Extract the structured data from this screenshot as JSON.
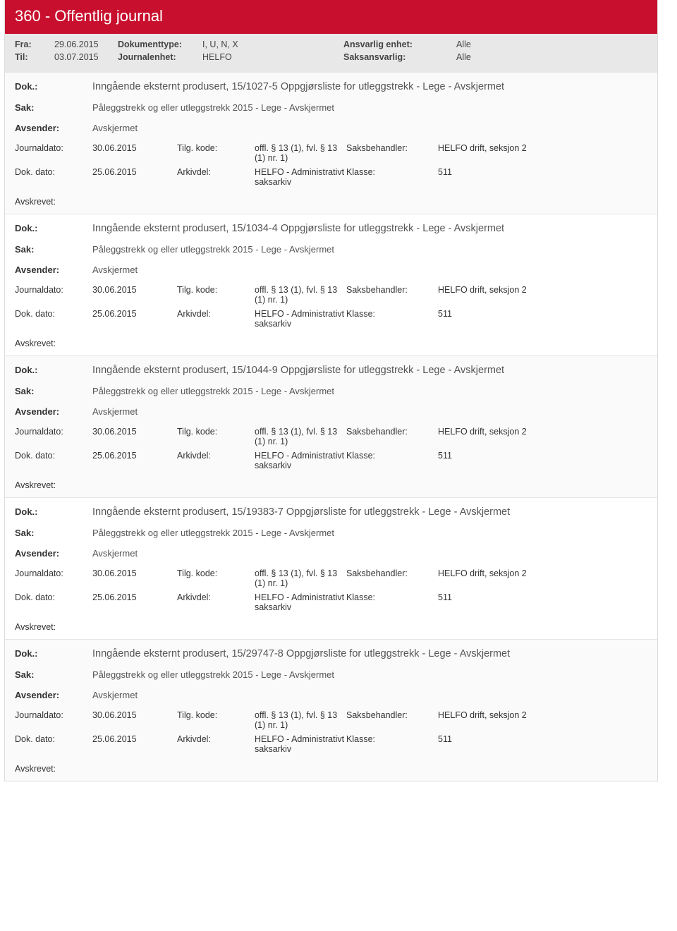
{
  "header": {
    "title": "360 - Offentlig journal",
    "rows": [
      {
        "l1": "Fra:",
        "v1": "29.06.2015",
        "l2": "Dokumenttype:",
        "v2": "I, U, N, X",
        "l3": "Ansvarlig enhet:",
        "v3": "Alle"
      },
      {
        "l1": "Til:",
        "v1": "03.07.2015",
        "l2": "Journalenhet:",
        "v2": "HELFO",
        "l3": "Saksansvarlig:",
        "v3": "Alle"
      }
    ]
  },
  "labels": {
    "dok": "Dok.:",
    "sak": "Sak:",
    "avsender": "Avsender:",
    "journaldato": "Journaldato:",
    "tilgkode": "Tilg. kode:",
    "saksbehandler": "Saksbehandler:",
    "dokdato": "Dok. dato:",
    "arkivdel": "Arkivdel:",
    "klasse": "Klasse:",
    "avskrevet": "Avskrevet:"
  },
  "common": {
    "sak": "Påleggstrekk og eller utleggstrekk 2015 - Lege - Avskjermet",
    "avsender": "Avskjermet",
    "journaldato": "30.06.2015",
    "tilgkode": "offl. § 13 (1), fvl. § 13 (1) nr. 1)",
    "saksbehandler": "HELFO drift, seksjon 2",
    "dokdato": "25.06.2015",
    "arkivdel": "HELFO - Administrativt saksarkiv",
    "klasse": "511"
  },
  "entries": [
    {
      "dok": "Inngående eksternt produsert, 15/1027-5 Oppgjørsliste for utleggstrekk - Lege - Avskjermet"
    },
    {
      "dok": "Inngående eksternt produsert, 15/1034-4 Oppgjørsliste for utleggstrekk - Lege - Avskjermet"
    },
    {
      "dok": "Inngående eksternt produsert, 15/1044-9 Oppgjørsliste for utleggstrekk - Lege - Avskjermet"
    },
    {
      "dok": "Inngående eksternt produsert, 15/19383-7 Oppgjørsliste for utleggstrekk - Lege - Avskjermet"
    },
    {
      "dok": "Inngående eksternt produsert, 15/29747-8 Oppgjørsliste for utleggstrekk - Lege - Avskjermet"
    }
  ]
}
